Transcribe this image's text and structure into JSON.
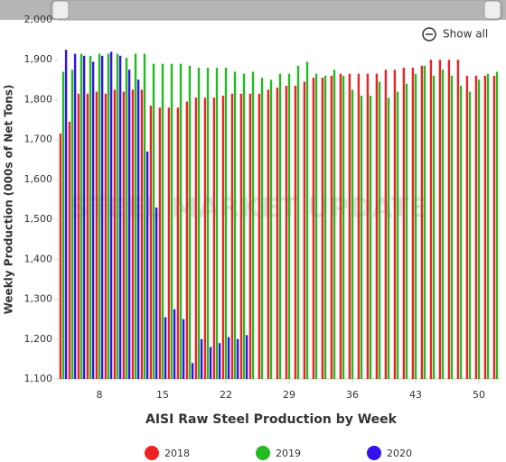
{
  "chart_data": {
    "type": "bar",
    "title": "AISI Raw Steel Production by Week",
    "y_label": "Weekly Production (000s of Net Tons)",
    "watermark": "STEEL MARKET UPDATE",
    "button": "Show all",
    "x": [
      4,
      5,
      6,
      7,
      8,
      9,
      10,
      11,
      12,
      13,
      14,
      15,
      16,
      17,
      18,
      19,
      20,
      21,
      22,
      23,
      24,
      25,
      26,
      27,
      28,
      29,
      30,
      31,
      32,
      33,
      34,
      35,
      36,
      37,
      38,
      39,
      40,
      41,
      42,
      43,
      44,
      45,
      46,
      47,
      48,
      49,
      50,
      51,
      52
    ],
    "series": [
      {
        "name": "2018",
        "color": "#ee2222",
        "values": [
          1715,
          1745,
          1815,
          1815,
          1820,
          1815,
          1825,
          1820,
          1825,
          1825,
          1785,
          1780,
          1780,
          1780,
          1795,
          1805,
          1805,
          1805,
          1810,
          1815,
          1815,
          1815,
          1815,
          1825,
          1830,
          1835,
          1835,
          1845,
          1855,
          1855,
          1860,
          1865,
          1865,
          1865,
          1865,
          1865,
          1875,
          1875,
          1880,
          1880,
          1885,
          1900,
          1900,
          1900,
          1900,
          1860,
          1860,
          1860,
          1860
        ]
      },
      {
        "name": "2019",
        "color": "#22bb22",
        "values": [
          1870,
          1875,
          1915,
          1910,
          1915,
          1915,
          1915,
          1905,
          1915,
          1915,
          1890,
          1890,
          1890,
          1890,
          1885,
          1880,
          1880,
          1880,
          1880,
          1870,
          1865,
          1870,
          1855,
          1850,
          1865,
          1865,
          1885,
          1895,
          1865,
          1860,
          1875,
          1860,
          1825,
          1810,
          1810,
          1845,
          1805,
          1820,
          1840,
          1865,
          1885,
          1860,
          1875,
          1860,
          1835,
          1820,
          1850,
          1865,
          1870
        ]
      },
      {
        "name": "2020",
        "color": "#3311ee",
        "values": [
          1925,
          1915,
          1910,
          1895,
          1910,
          1920,
          1910,
          1875,
          1850,
          1670,
          1530,
          1255,
          1275,
          1250,
          1140,
          1200,
          1180,
          1190,
          1205,
          1200,
          1210,
          null,
          null,
          null,
          null,
          null,
          null,
          null,
          null,
          null,
          null,
          null,
          null,
          null,
          null,
          null,
          null,
          null,
          null,
          null,
          null,
          null,
          null,
          null,
          null,
          null,
          null,
          null,
          null
        ]
      }
    ],
    "xlim": [
      3.4,
      52.3
    ],
    "xticks": [
      8,
      15,
      22,
      29,
      36,
      43,
      50
    ],
    "ylim": [
      1100,
      2000
    ],
    "yticks": [
      {
        "value": 1100,
        "label": "1,100"
      },
      {
        "value": 1200,
        "label": "1,200"
      },
      {
        "value": 1300,
        "label": "1,300"
      },
      {
        "value": 1400,
        "label": "1,400"
      },
      {
        "value": 1500,
        "label": "1,500"
      },
      {
        "value": 1600,
        "label": "1,600"
      },
      {
        "value": 1700,
        "label": "1,700"
      },
      {
        "value": 1800,
        "label": "1,800"
      },
      {
        "value": 1900,
        "label": "1,900"
      },
      {
        "value": 2000,
        "label": "2,000"
      }
    ],
    "grid": false
  }
}
